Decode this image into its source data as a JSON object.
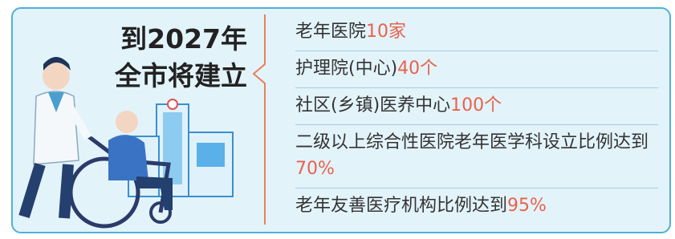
{
  "header": {
    "title_lines": [
      "到2027年",
      "全市将建立"
    ]
  },
  "items": [
    {
      "text": "老年医院",
      "highlight": "10家"
    },
    {
      "text": "护理院(中心)",
      "highlight": "40个"
    },
    {
      "text": "社区(乡镇)医养中心",
      "highlight": "100个"
    },
    {
      "text": "二级以上综合性医院老年医学科设立比例达到",
      "highlight": "70%"
    },
    {
      "text": "老年友善医疗机构比例达到",
      "highlight": "95%"
    }
  ]
}
